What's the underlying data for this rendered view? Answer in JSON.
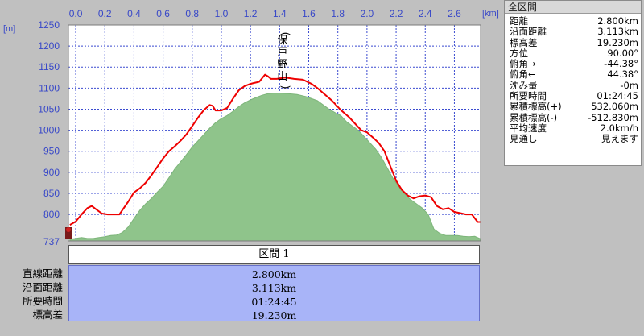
{
  "chart_data": {
    "type": "area",
    "x_unit": "[km]",
    "y_unit": "[m]",
    "xlim": [
      -0.05,
      2.78
    ],
    "ylim": [
      737,
      1250
    ],
    "x_ticks": [
      "0.0",
      "0.2",
      "0.4",
      "0.6",
      "0.8",
      "1.0",
      "1.2",
      "1.4",
      "1.6",
      "1.8",
      "2.0",
      "2.2",
      "2.4",
      "2.6"
    ],
    "y_ticks": [
      "1250",
      "1200",
      "1150",
      "1100",
      "1050",
      "1000",
      "950",
      "900",
      "850",
      "800"
    ],
    "y_min_label": "737",
    "grid": true,
    "peak_label": "保戸野山",
    "peak_x": 1.38,
    "series": [
      {
        "kind": "elevation_profile_line",
        "color": "#ee0000",
        "points": [
          [
            -0.04,
            775
          ],
          [
            0.0,
            783
          ],
          [
            0.04,
            800
          ],
          [
            0.08,
            815
          ],
          [
            0.11,
            820
          ],
          [
            0.14,
            812
          ],
          [
            0.18,
            802
          ],
          [
            0.22,
            800
          ],
          [
            0.26,
            800
          ],
          [
            0.3,
            800
          ],
          [
            0.32,
            810
          ],
          [
            0.36,
            830
          ],
          [
            0.4,
            852
          ],
          [
            0.44,
            862
          ],
          [
            0.48,
            875
          ],
          [
            0.52,
            893
          ],
          [
            0.56,
            913
          ],
          [
            0.6,
            933
          ],
          [
            0.64,
            950
          ],
          [
            0.68,
            962
          ],
          [
            0.72,
            975
          ],
          [
            0.76,
            990
          ],
          [
            0.8,
            1010
          ],
          [
            0.84,
            1030
          ],
          [
            0.88,
            1048
          ],
          [
            0.92,
            1060
          ],
          [
            0.94,
            1058
          ],
          [
            0.96,
            1047
          ],
          [
            1.0,
            1047
          ],
          [
            1.04,
            1053
          ],
          [
            1.08,
            1075
          ],
          [
            1.12,
            1095
          ],
          [
            1.16,
            1105
          ],
          [
            1.2,
            1110
          ],
          [
            1.22,
            1112
          ],
          [
            1.26,
            1115
          ],
          [
            1.3,
            1132
          ],
          [
            1.32,
            1128
          ],
          [
            1.34,
            1122
          ],
          [
            1.38,
            1122
          ],
          [
            1.44,
            1125
          ],
          [
            1.5,
            1122
          ],
          [
            1.56,
            1120
          ],
          [
            1.62,
            1110
          ],
          [
            1.66,
            1100
          ],
          [
            1.7,
            1088
          ],
          [
            1.76,
            1070
          ],
          [
            1.82,
            1048
          ],
          [
            1.88,
            1030
          ],
          [
            1.92,
            1015
          ],
          [
            1.96,
            1000
          ],
          [
            2.0,
            995
          ],
          [
            2.04,
            983
          ],
          [
            2.08,
            970
          ],
          [
            2.12,
            950
          ],
          [
            2.16,
            915
          ],
          [
            2.2,
            880
          ],
          [
            2.24,
            858
          ],
          [
            2.28,
            845
          ],
          [
            2.32,
            838
          ],
          [
            2.36,
            843
          ],
          [
            2.4,
            845
          ],
          [
            2.44,
            841
          ],
          [
            2.48,
            820
          ],
          [
            2.52,
            812
          ],
          [
            2.56,
            815
          ],
          [
            2.6,
            806
          ],
          [
            2.64,
            803
          ],
          [
            2.68,
            800
          ],
          [
            2.72,
            800
          ],
          [
            2.76,
            782
          ],
          [
            2.78,
            782
          ]
        ]
      },
      {
        "kind": "line_of_sight_area",
        "color": "#8fc48b",
        "points": [
          [
            -0.04,
            741
          ],
          [
            0.0,
            743
          ],
          [
            0.04,
            745
          ],
          [
            0.08,
            743
          ],
          [
            0.12,
            743
          ],
          [
            0.16,
            745
          ],
          [
            0.2,
            747
          ],
          [
            0.24,
            750
          ],
          [
            0.28,
            751
          ],
          [
            0.32,
            757
          ],
          [
            0.36,
            770
          ],
          [
            0.4,
            790
          ],
          [
            0.44,
            810
          ],
          [
            0.48,
            825
          ],
          [
            0.52,
            838
          ],
          [
            0.56,
            853
          ],
          [
            0.6,
            867
          ],
          [
            0.64,
            887
          ],
          [
            0.68,
            908
          ],
          [
            0.72,
            925
          ],
          [
            0.76,
            942
          ],
          [
            0.8,
            960
          ],
          [
            0.84,
            975
          ],
          [
            0.88,
            990
          ],
          [
            0.92,
            1005
          ],
          [
            0.96,
            1018
          ],
          [
            1.0,
            1028
          ],
          [
            1.04,
            1035
          ],
          [
            1.08,
            1045
          ],
          [
            1.12,
            1056
          ],
          [
            1.16,
            1065
          ],
          [
            1.2,
            1072
          ],
          [
            1.24,
            1078
          ],
          [
            1.28,
            1083
          ],
          [
            1.32,
            1087
          ],
          [
            1.36,
            1088
          ],
          [
            1.4,
            1088
          ],
          [
            1.46,
            1087
          ],
          [
            1.52,
            1085
          ],
          [
            1.58,
            1080
          ],
          [
            1.62,
            1075
          ],
          [
            1.66,
            1070
          ],
          [
            1.7,
            1060
          ],
          [
            1.74,
            1050
          ],
          [
            1.78,
            1042
          ],
          [
            1.82,
            1035
          ],
          [
            1.86,
            1020
          ],
          [
            1.9,
            1010
          ],
          [
            1.94,
            1000
          ],
          [
            1.98,
            985
          ],
          [
            2.02,
            970
          ],
          [
            2.06,
            955
          ],
          [
            2.1,
            935
          ],
          [
            2.14,
            910
          ],
          [
            2.18,
            885
          ],
          [
            2.22,
            865
          ],
          [
            2.26,
            848
          ],
          [
            2.3,
            835
          ],
          [
            2.34,
            825
          ],
          [
            2.38,
            815
          ],
          [
            2.42,
            800
          ],
          [
            2.46,
            765
          ],
          [
            2.5,
            755
          ],
          [
            2.54,
            750
          ],
          [
            2.58,
            750
          ],
          [
            2.62,
            750
          ],
          [
            2.66,
            748
          ],
          [
            2.7,
            747
          ],
          [
            2.74,
            748
          ],
          [
            2.78,
            742
          ]
        ]
      }
    ]
  },
  "info_panel": {
    "title": "全区間",
    "rows": [
      {
        "label": "距離",
        "value": "2.800km"
      },
      {
        "label": "沿面距離",
        "value": "3.113km"
      },
      {
        "label": "標高差",
        "value": "19.230m"
      },
      {
        "label": "方位",
        "value": "90.00°"
      },
      {
        "label": "俯角→",
        "value": "-44.38°"
      },
      {
        "label": "俯角←",
        "value": "44.38°"
      },
      {
        "label": "沈み量",
        "value": "-0m"
      },
      {
        "label": "所要時間",
        "value": "01:24:45"
      },
      {
        "label": "累積標高(+)",
        "value": "532.060m"
      },
      {
        "label": "累積標高(-)",
        "value": "-512.830m"
      },
      {
        "label": "平均速度",
        "value": "2.0km/h"
      },
      {
        "label": "見通し",
        "value": "見えます"
      }
    ]
  },
  "section_table": {
    "header": "区間 1",
    "rows": [
      {
        "label": "直線距離",
        "value": "2.800km"
      },
      {
        "label": "沿面距離",
        "value": "3.113km"
      },
      {
        "label": "所要時間",
        "value": "01:24:45"
      },
      {
        "label": "標高差",
        "value": "19.230m"
      }
    ]
  }
}
